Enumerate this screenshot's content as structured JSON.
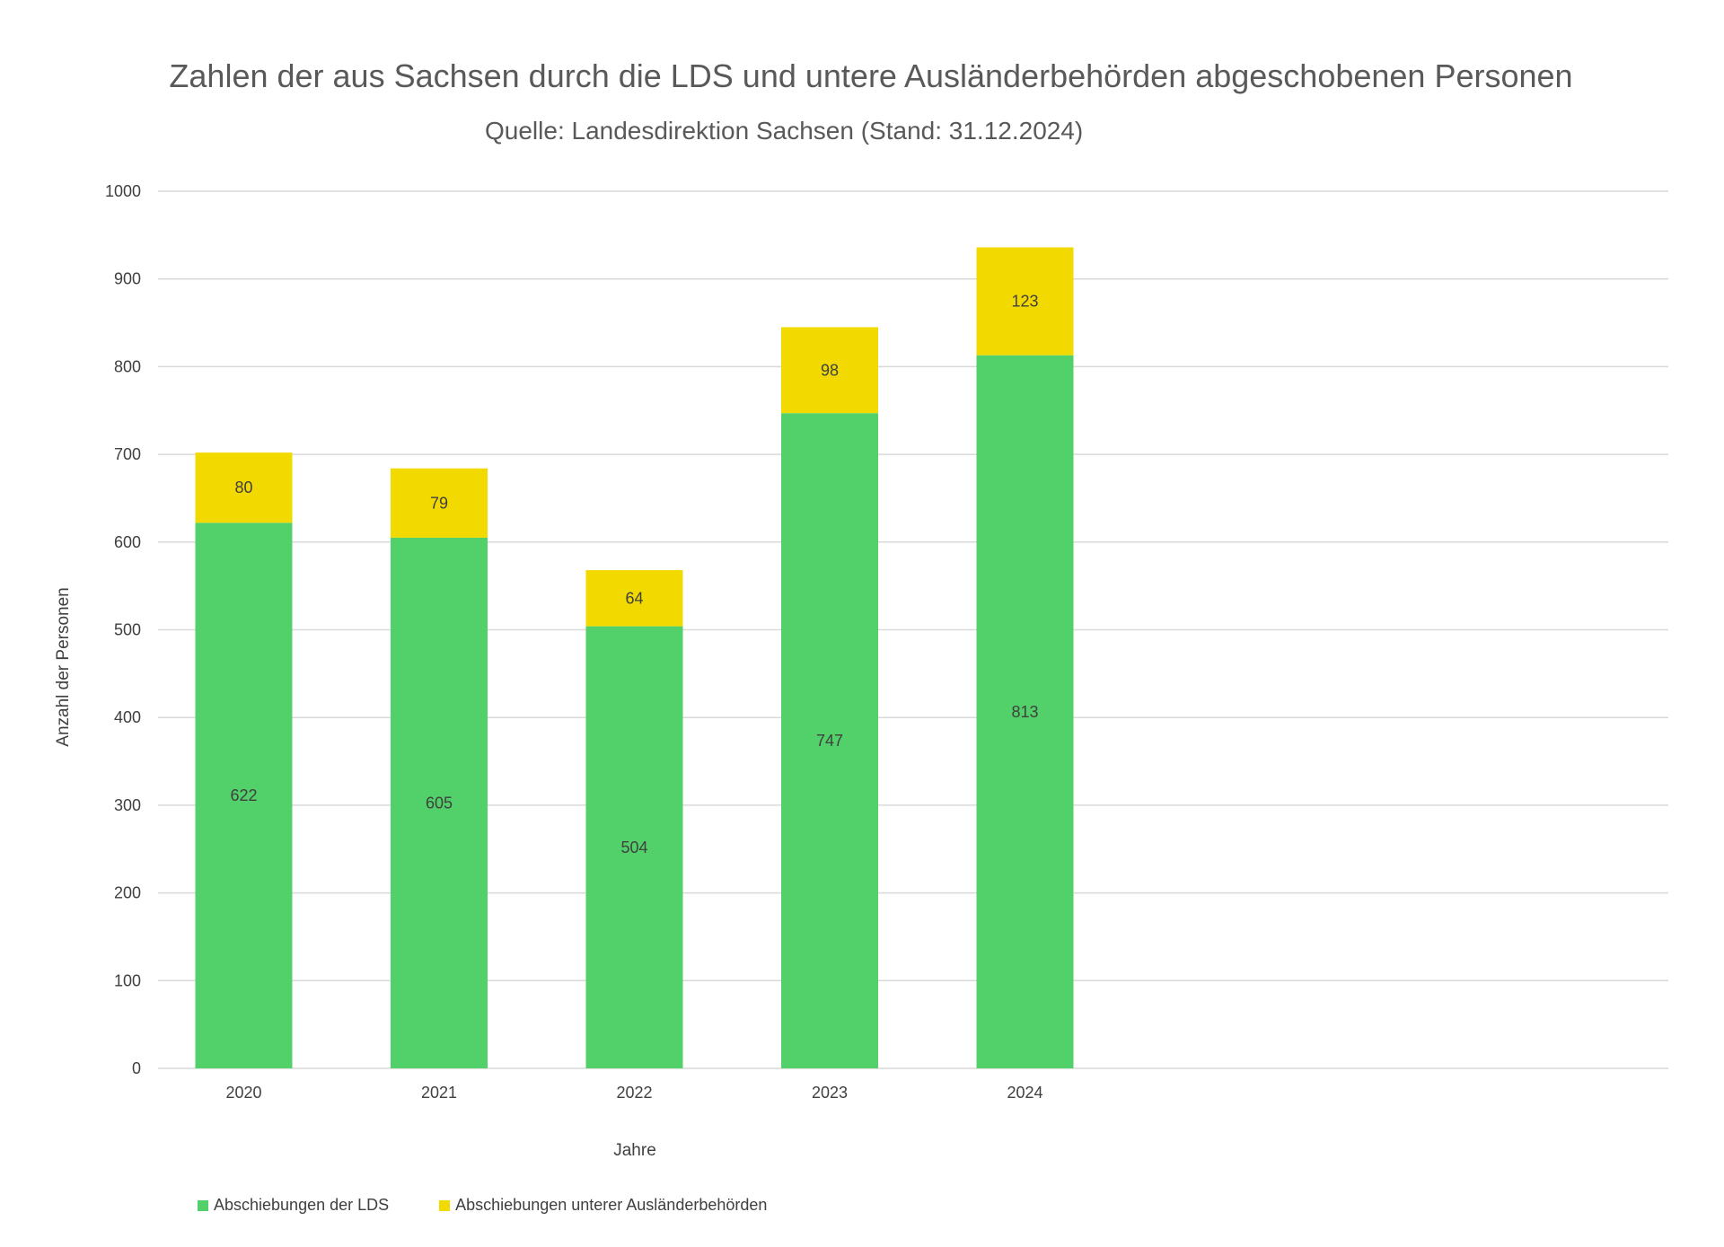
{
  "chart_data": {
    "type": "bar",
    "stacked": true,
    "title": "Zahlen der aus Sachsen durch die LDS und untere Ausländerbehörden abgeschobenen Personen",
    "subtitle": "Quelle: Landesdirektion Sachsen (Stand: 31.12.2024)",
    "xlabel": "Jahre",
    "ylabel": "Anzahl der Personen",
    "categories": [
      "2020",
      "2021",
      "2022",
      "2023",
      "2024"
    ],
    "ylim": [
      0,
      1000
    ],
    "yticks": [
      0,
      100,
      200,
      300,
      400,
      500,
      600,
      700,
      800,
      900,
      1000
    ],
    "grid": true,
    "legend_position": "bottom-left",
    "series": [
      {
        "name": "Abschiebungen der LDS",
        "color": "#52d16a",
        "values": [
          622,
          605,
          504,
          747,
          813
        ]
      },
      {
        "name": "Abschiebungen unterer Ausländerbehörden",
        "color": "#f2d900",
        "values": [
          80,
          79,
          64,
          98,
          123
        ]
      }
    ]
  }
}
